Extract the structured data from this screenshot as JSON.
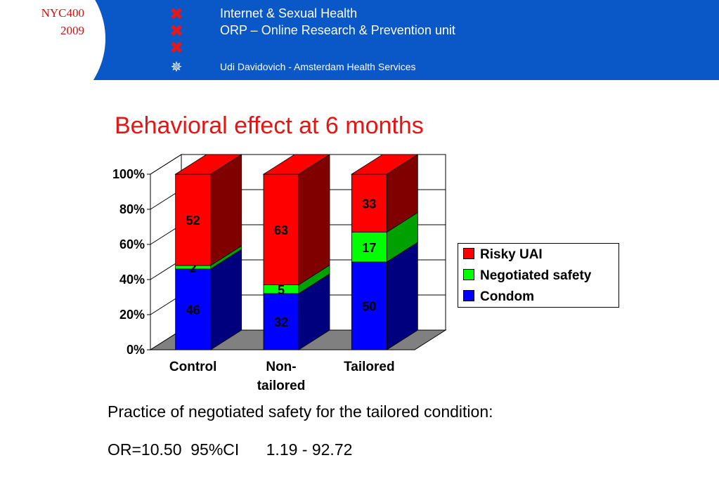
{
  "header": {
    "conference": [
      "NYC400",
      "2009"
    ],
    "logo_marks": [
      "x-cross-icon",
      "x-cross-icon",
      "x-cross-icon",
      "asklepios-star-icon"
    ],
    "line1": "Internet & Sexual Health",
    "line2": "ORP – Online Research & Prevention unit",
    "line3": "Udi Davidovich - Amsterdam Health Services",
    "colors": {
      "bar": "#0a57c7",
      "logo_cross": "#e81818",
      "conference_text": "#c81414"
    }
  },
  "slide_title": "Behavioral effect at 6 months",
  "chart_data": {
    "type": "bar",
    "stacked": "100%",
    "categories": [
      [
        "Control"
      ],
      [
        "Non-",
        "tailored"
      ],
      [
        "Tailored"
      ]
    ],
    "series": [
      {
        "name": "Condom",
        "values": [
          46,
          32,
          50
        ],
        "color": "#0000ff",
        "side_color": "#00007f"
      },
      {
        "name": "Negotiated safety",
        "values": [
          2,
          5,
          17
        ],
        "color": "#00ff00",
        "side_color": "#00a000"
      },
      {
        "name": "Risky UAI",
        "values": [
          52,
          63,
          33
        ],
        "color": "#ff0000",
        "side_color": "#800000"
      }
    ],
    "y_ticks": [
      "0%",
      "20%",
      "40%",
      "60%",
      "80%",
      "100%"
    ],
    "ylim": [
      0,
      100
    ],
    "grid": true,
    "three_d": true,
    "legend": "right"
  },
  "notes": {
    "line1": "Practice of negotiated safety for the tailored condition:",
    "line2": "OR=10.50  95%CI      1.19 - 92.72"
  }
}
